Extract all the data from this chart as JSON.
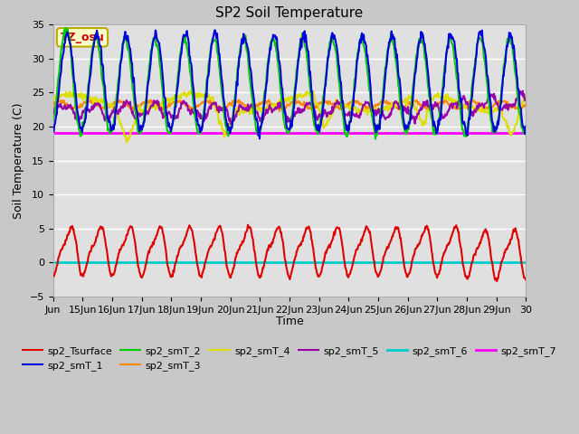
{
  "title": "SP2 Soil Temperature",
  "xlabel": "Time",
  "ylabel": "Soil Temperature (C)",
  "ylim": [
    -5,
    35
  ],
  "yticks": [
    -5,
    0,
    5,
    10,
    15,
    20,
    25,
    30,
    35
  ],
  "annotation_text": "TZ_osu",
  "annotation_color": "#cc0000",
  "annotation_bg": "#ffffcc",
  "annotation_border": "#bbaa00",
  "fig_bg": "#c8c8c8",
  "plot_bg": "#e0e0e0",
  "series": {
    "sp2_Tsurface": {
      "color": "#dd0000",
      "lw": 1.5
    },
    "sp2_smT_1": {
      "color": "#0000dd",
      "lw": 1.5
    },
    "sp2_smT_2": {
      "color": "#00cc00",
      "lw": 1.5
    },
    "sp2_smT_3": {
      "color": "#ff8800",
      "lw": 1.5
    },
    "sp2_smT_4": {
      "color": "#dddd00",
      "lw": 1.5
    },
    "sp2_smT_5": {
      "color": "#9900aa",
      "lw": 1.5
    },
    "sp2_smT_6": {
      "color": "#00cccc",
      "lw": 2.0
    },
    "sp2_smT_7": {
      "color": "#ff00ff",
      "lw": 2.0
    }
  },
  "smT_7_value": 19.0,
  "smT_6_value": 0.0,
  "x_labels": [
    "Jun",
    "15Jun",
    "16Jun",
    "17Jun",
    "18Jun",
    "19Jun",
    "20Jun",
    "21Jun",
    "22Jun",
    "23Jun",
    "24Jun",
    "25Jun",
    "26Jun",
    "27Jun",
    "28Jun",
    "29Jun",
    "30"
  ]
}
